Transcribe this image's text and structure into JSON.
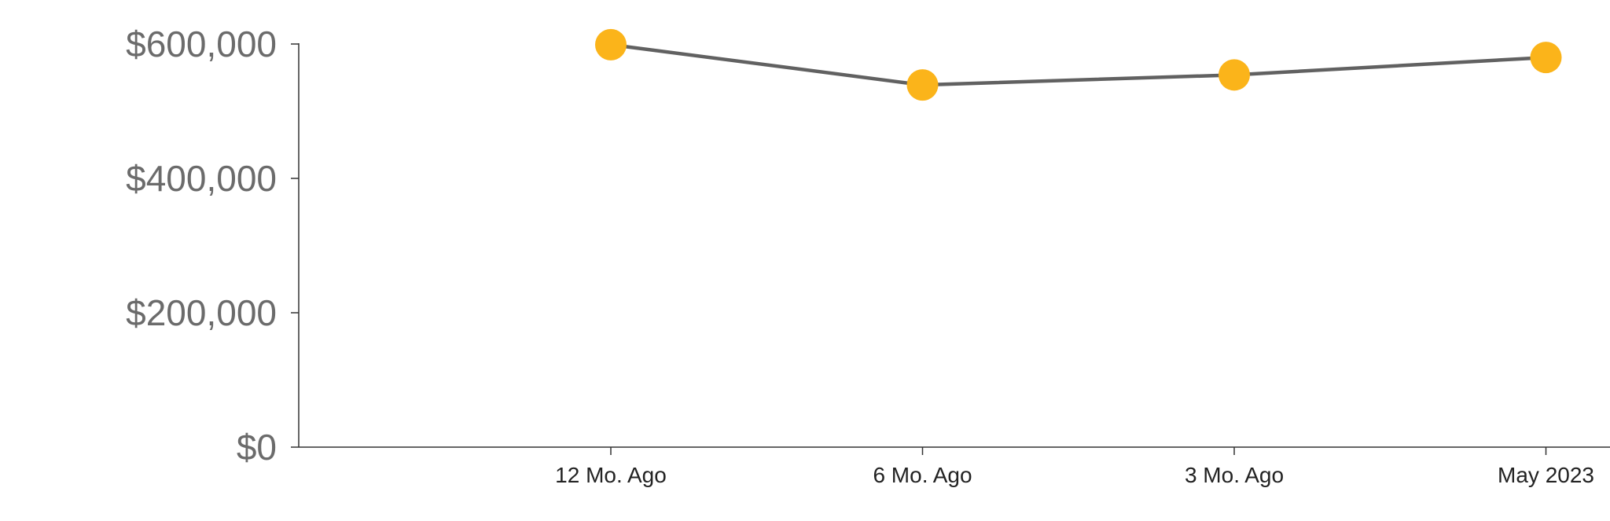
{
  "chart_data": {
    "type": "line",
    "categories": [
      "12 Mo. Ago",
      "6 Mo. Ago",
      "3 Mo. Ago",
      "May 2023"
    ],
    "series": [
      {
        "values": [
          599000,
          539000,
          554000,
          580000
        ]
      }
    ],
    "y_ticks": [
      0,
      200000,
      400000,
      600000
    ],
    "y_tick_labels": [
      "$0",
      "$200,000",
      "$400,000",
      "$600,000"
    ],
    "ylim": [
      0,
      600000
    ],
    "grid": false,
    "line_color": "#616161",
    "marker_color": "#FBB41A"
  }
}
